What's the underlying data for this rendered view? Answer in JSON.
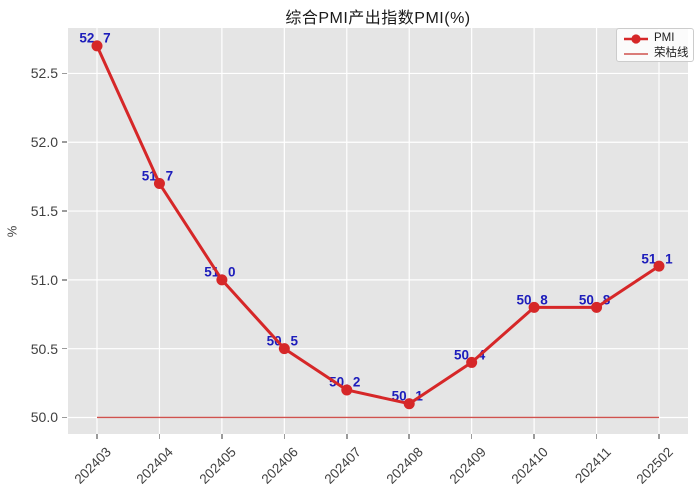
{
  "window": {
    "title": "综合PMI产出指数PMI(%)"
  },
  "chart_data": {
    "type": "line",
    "title": "综合PMI产出指数PMI(%)",
    "xlabel": "",
    "ylabel": "%",
    "categories": [
      "202403",
      "202404",
      "202405",
      "202406",
      "202407",
      "202408",
      "202409",
      "202410",
      "202411",
      "202502"
    ],
    "series": [
      {
        "name": "PMI",
        "values": [
          52.7,
          51.7,
          51.0,
          50.5,
          50.2,
          50.1,
          50.4,
          50.8,
          50.8,
          51.1
        ],
        "color": "#d62728",
        "marker": "circle",
        "line_width": 3,
        "data_label_color": "#1d1dbb"
      }
    ],
    "reference_line": {
      "name": "荣枯线",
      "value": 50.0,
      "color": "#d0524e"
    },
    "yticks": [
      50.0,
      50.5,
      51.0,
      51.5,
      52.0,
      52.5
    ],
    "ylim": [
      49.88,
      52.83
    ],
    "grid": true,
    "legend_position": "upper right",
    "colors": {
      "plot_background": "#e5e5e5",
      "grid_line": "#ffffff",
      "tick_text": "#404040",
      "title_text": "#1a1a1a"
    }
  }
}
